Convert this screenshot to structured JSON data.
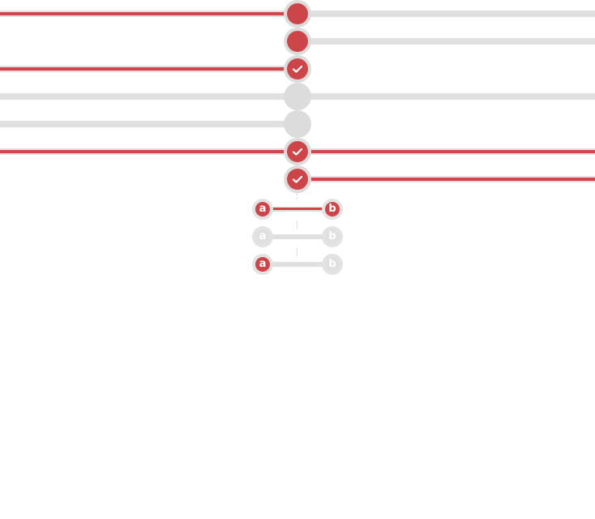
{
  "colors": {
    "accent": "#cc4649",
    "track": "#e0e0e0",
    "inactive_node": "#dcdcdc"
  },
  "timeline_rows": [
    {
      "left_active": true,
      "right_active": false,
      "node_active": true,
      "node_icon": "dot-icon"
    },
    {
      "left_active": false,
      "right_active": false,
      "node_active": true,
      "node_icon": "dot-icon",
      "left_hidden": true
    },
    {
      "left_active": true,
      "right_active": false,
      "node_active": true,
      "node_icon": "check-icon",
      "right_hidden": true
    },
    {
      "left_active": false,
      "right_active": false,
      "node_active": false,
      "node_icon": "none"
    },
    {
      "left_active": false,
      "right_active": false,
      "node_active": false,
      "node_icon": "none",
      "right_hidden": true
    },
    {
      "left_active": true,
      "right_active": true,
      "node_active": true,
      "node_icon": "check-icon"
    },
    {
      "left_active": false,
      "right_active": true,
      "node_active": true,
      "node_icon": "check-icon",
      "left_hidden": true
    }
  ],
  "ab_rows": [
    {
      "a_label": "a",
      "b_label": "b",
      "a_active": true,
      "b_active": true,
      "line_active": true
    },
    {
      "a_label": "a",
      "b_label": "b",
      "a_active": false,
      "b_active": false,
      "line_active": false
    },
    {
      "a_label": "a",
      "b_label": "b",
      "a_active": true,
      "b_active": false,
      "line_active": false
    }
  ]
}
